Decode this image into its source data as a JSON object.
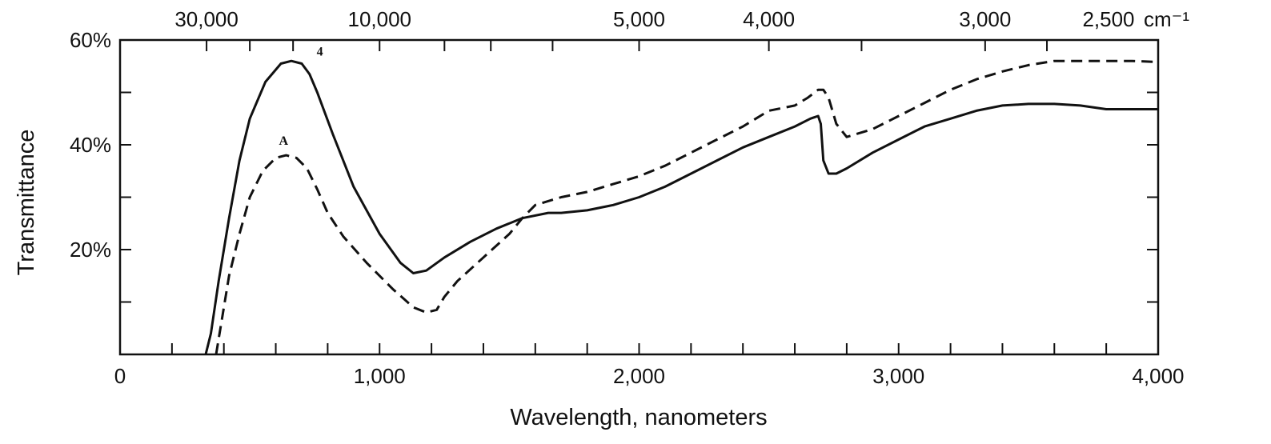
{
  "chart_data": {
    "type": "line",
    "xlabel": "Wavelength, nanometers",
    "ylabel": "Transmittance",
    "xlim": [
      0,
      4000
    ],
    "ylim": [
      0,
      60
    ],
    "x_ticks": [
      {
        "value": 0,
        "label": "0"
      },
      {
        "value": 1000,
        "label": "1,000"
      },
      {
        "value": 2000,
        "label": "2,000"
      },
      {
        "value": 3000,
        "label": "3,000"
      },
      {
        "value": 4000,
        "label": "4,000"
      }
    ],
    "x_minor_step": 200,
    "y_ticks": [
      {
        "value": 20,
        "label": "20%"
      },
      {
        "value": 40,
        "label": "40%"
      },
      {
        "value": 60,
        "label": "60%"
      }
    ],
    "y_minor_step": 10,
    "top_axis": {
      "unit_label": "cm⁻¹",
      "ticks": [
        {
          "value": 30000,
          "label": "30,000"
        },
        {
          "value": 10000,
          "label": "10,000"
        },
        {
          "value": 5000,
          "label": "5,000"
        },
        {
          "value": 4000,
          "label": "4,000"
        },
        {
          "value": 3000,
          "label": "3,000"
        },
        {
          "value": 2500,
          "label": "2,500"
        }
      ]
    },
    "series": [
      {
        "name": "4",
        "style": "solid",
        "color": "#111111",
        "x": [
          330,
          350,
          380,
          420,
          460,
          500,
          560,
          620,
          660,
          700,
          730,
          760,
          820,
          900,
          1000,
          1080,
          1130,
          1180,
          1250,
          1350,
          1450,
          1550,
          1650,
          1700,
          1800,
          1900,
          2000,
          2100,
          2200,
          2300,
          2400,
          2500,
          2600,
          2660,
          2690,
          2700,
          2710,
          2730,
          2760,
          2800,
          2900,
          3000,
          3100,
          3200,
          3300,
          3400,
          3500,
          3600,
          3700,
          3800,
          3900,
          4000
        ],
        "y": [
          0,
          4,
          14,
          26,
          37,
          45,
          52,
          55.5,
          56,
          55.5,
          53.5,
          50,
          42,
          32,
          23,
          17.5,
          15.5,
          16,
          18.5,
          21.5,
          24,
          26,
          27,
          27,
          27.5,
          28.5,
          30,
          32,
          34.5,
          37,
          39.5,
          41.5,
          43.5,
          45,
          45.5,
          44,
          37,
          34.5,
          34.5,
          35.5,
          38.5,
          41,
          43.5,
          45,
          46.5,
          47.5,
          47.8,
          47.8,
          47.5,
          46.8,
          46.8,
          46.8
        ]
      },
      {
        "name": "A",
        "style": "dashed",
        "color": "#111111",
        "x": [
          370,
          390,
          420,
          460,
          500,
          550,
          600,
          640,
          680,
          720,
          760,
          800,
          860,
          950,
          1050,
          1130,
          1180,
          1220,
          1250,
          1300,
          1400,
          1500,
          1550,
          1600,
          1700,
          1800,
          1900,
          2000,
          2100,
          2200,
          2300,
          2400,
          2500,
          2600,
          2650,
          2690,
          2710,
          2730,
          2760,
          2800,
          2900,
          3000,
          3100,
          3200,
          3300,
          3400,
          3500,
          3600,
          3700,
          3800,
          3900,
          4000
        ],
        "y": [
          0,
          6,
          15,
          23,
          30,
          35,
          37.5,
          38,
          37.5,
          35.5,
          31.5,
          27,
          22.5,
          17.5,
          12.5,
          9,
          8,
          8.5,
          11,
          14,
          18.5,
          23,
          26,
          28.5,
          30,
          31,
          32.5,
          34,
          36,
          38.5,
          41,
          43.5,
          46.5,
          47.5,
          49,
          50.5,
          50.5,
          49,
          44,
          41.5,
          43,
          45.5,
          48,
          50.5,
          52.5,
          54,
          55.2,
          56,
          56,
          56,
          56,
          55.8
        ]
      }
    ],
    "annotations": [
      {
        "text": "4",
        "series": "4",
        "x": 770,
        "y": 57
      },
      {
        "text": "A",
        "series": "A",
        "x": 630,
        "y": 40
      }
    ],
    "grid": false,
    "legend": "none"
  }
}
